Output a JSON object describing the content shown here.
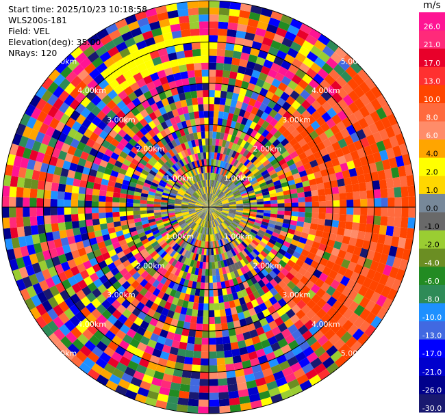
{
  "header": {
    "start_time": "Start time: 2025/10/23 10:18:58",
    "instrument": "WLS200s-181",
    "field": "Field: VEL",
    "elevation": "Elevation(deg): 35.00",
    "nrays": "NRays: 120"
  },
  "chart_data": {
    "type": "heatmap",
    "projection": "polar-ppi",
    "field": "VEL",
    "ray_count": 120,
    "range_rings_km": [
      1.0,
      2.0,
      3.0,
      4.0,
      5.0
    ],
    "range_ring_labels": [
      "1.00km",
      "2.00km",
      "3.00km",
      "4.00km",
      "5.00km"
    ],
    "colorbar": {
      "unit": "m/s",
      "tick_labels": [
        "26.0",
        "21.0",
        "17.0",
        "13.0",
        "10.0",
        "8.0",
        "6.0",
        "4.0",
        "2.0",
        "1.0",
        "0.0",
        "-1.0",
        "-2.0",
        "-4.0",
        "-6.0",
        "-8.0",
        "-10.0",
        "-13.0",
        "-17.0",
        "-21.0",
        "-26.0",
        "-30.0"
      ],
      "colors": [
        "#ff1493",
        "#ff2a7a",
        "#e8002a",
        "#ff3030",
        "#ff4500",
        "#ff6a3d",
        "#ff8c69",
        "#ffa500",
        "#ffff00",
        "#ffd700",
        "#778899",
        "#696969",
        "#9acd32",
        "#6b8e23",
        "#228b22",
        "#2e8b57",
        "#1e90ff",
        "#4169e1",
        "#0000ff",
        "#0000cd",
        "#00008b",
        "#191970"
      ]
    }
  }
}
